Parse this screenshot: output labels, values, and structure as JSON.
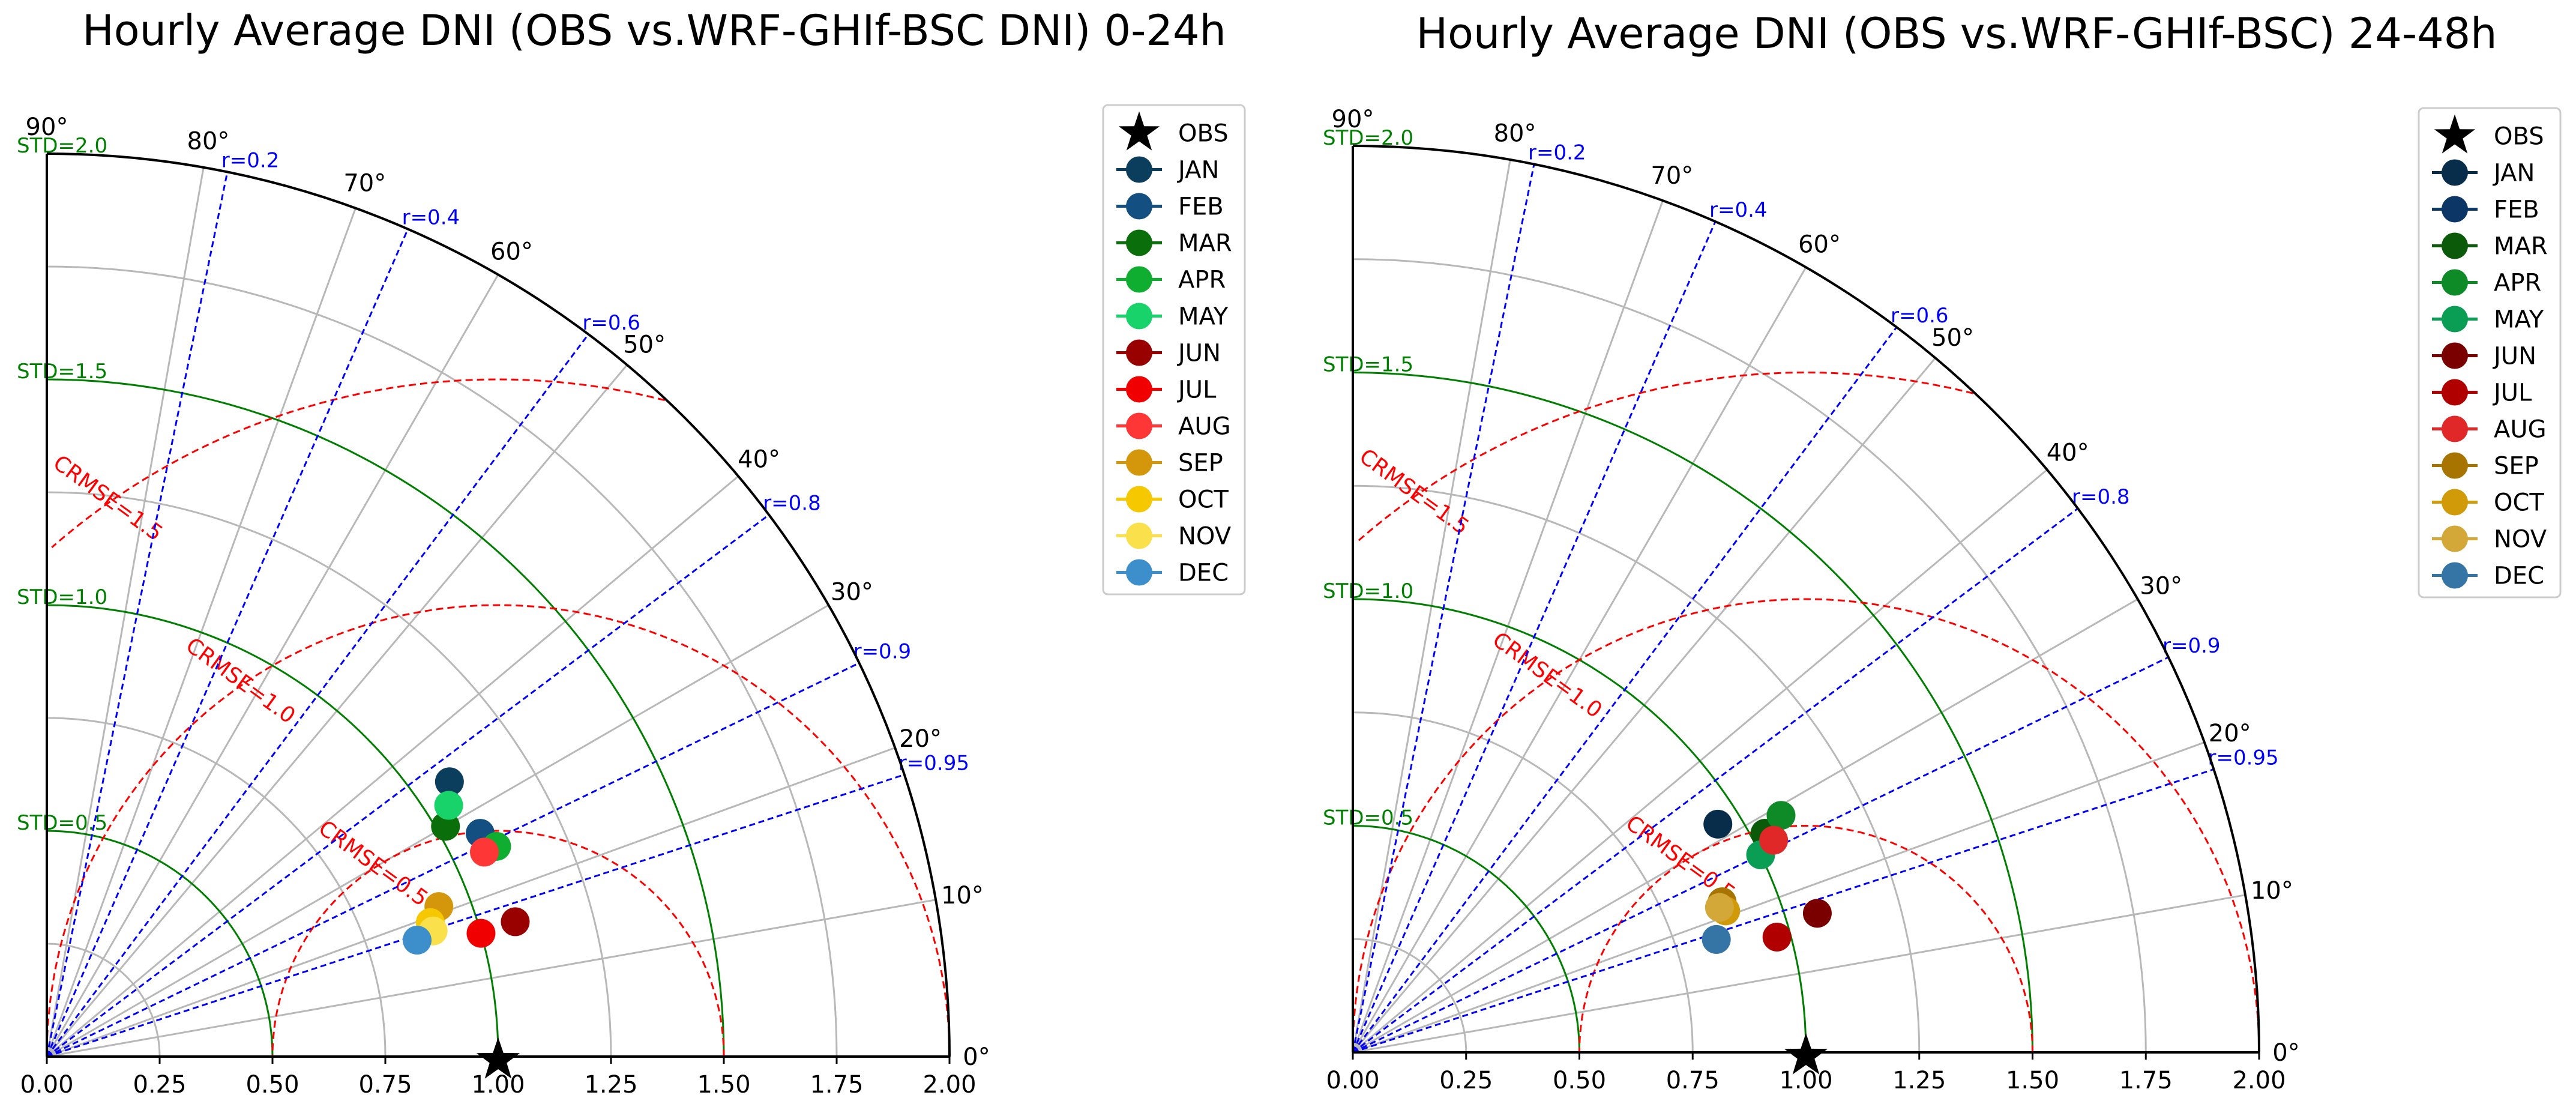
{
  "chart_data": [
    {
      "type": "taylor-diagram",
      "title": "Hourly Average DNI (OBS vs.WRF-GHIf-BSC DNI) 0-24h",
      "std_ticks": [
        "0.00",
        "0.25",
        "0.50",
        "0.75",
        "1.00",
        "1.25",
        "1.50",
        "1.75",
        "2.00"
      ],
      "angle_ticks": [
        "0°",
        "10°",
        "20°",
        "30°",
        "40°",
        "50°",
        "60°",
        "70°",
        "80°",
        "90°"
      ],
      "std_range": [
        0,
        2
      ],
      "std_arcs": [
        {
          "value": 0.5,
          "label": "STD=0.5"
        },
        {
          "value": 1.0,
          "label": "STD=1.0"
        },
        {
          "value": 1.5,
          "label": "STD=1.5"
        },
        {
          "value": 2.0,
          "label": "STD=2.0"
        }
      ],
      "correlation_lines": [
        {
          "r": 0.2,
          "label": "r=0.2"
        },
        {
          "r": 0.4,
          "label": "r=0.4"
        },
        {
          "r": 0.6,
          "label": "r=0.6"
        },
        {
          "r": 0.8,
          "label": "r=0.8"
        },
        {
          "r": 0.9,
          "label": "r=0.9"
        },
        {
          "r": 0.95,
          "label": "r=0.95"
        }
      ],
      "crmse_arcs": [
        {
          "value": 0.5,
          "label": "CRMSE=0.5"
        },
        {
          "value": 1.0,
          "label": "CRMSE=1.0"
        },
        {
          "value": 1.5,
          "label": "CRMSE=1.5"
        }
      ],
      "reference": {
        "name": "OBS",
        "std": 1.0,
        "r": 1.0
      },
      "points": [
        {
          "name": "JAN",
          "std": 1.08,
          "r": 0.826,
          "color": "#0b3d5c"
        },
        {
          "name": "FEB",
          "std": 1.08,
          "r": 0.889,
          "color": "#144f82"
        },
        {
          "name": "MAR",
          "std": 1.02,
          "r": 0.866,
          "color": "#0a6e0a"
        },
        {
          "name": "APR",
          "std": 1.1,
          "r": 0.906,
          "color": "#0fae30"
        },
        {
          "name": "MAY",
          "std": 1.05,
          "r": 0.848,
          "color": "#18d36a"
        },
        {
          "name": "JUN",
          "std": 1.08,
          "r": 0.961,
          "color": "#990000"
        },
        {
          "name": "JUL",
          "std": 1.0,
          "r": 0.962,
          "color": "#f00000"
        },
        {
          "name": "AUG",
          "std": 1.07,
          "r": 0.906,
          "color": "#ff3636"
        },
        {
          "name": "SEP",
          "std": 0.93,
          "r": 0.934,
          "color": "#d4960a"
        },
        {
          "name": "OCT",
          "std": 0.9,
          "r": 0.944,
          "color": "#f5c800"
        },
        {
          "name": "NOV",
          "std": 0.9,
          "r": 0.951,
          "color": "#fae04a"
        },
        {
          "name": "DEC",
          "std": 0.86,
          "r": 0.954,
          "color": "#3d8fcc"
        }
      ]
    },
    {
      "type": "taylor-diagram",
      "title": "Hourly Average DNI (OBS vs.WRF-GHIf-BSC) 24-48h",
      "std_ticks": [
        "0.00",
        "0.25",
        "0.50",
        "0.75",
        "1.00",
        "1.25",
        "1.50",
        "1.75",
        "2.00"
      ],
      "angle_ticks": [
        "0°",
        "10°",
        "20°",
        "30°",
        "40°",
        "50°",
        "60°",
        "70°",
        "80°",
        "90°"
      ],
      "std_range": [
        0,
        2
      ],
      "std_arcs": [
        {
          "value": 0.5,
          "label": "STD=0.5"
        },
        {
          "value": 1.0,
          "label": "STD=1.0"
        },
        {
          "value": 1.5,
          "label": "STD=1.5"
        },
        {
          "value": 2.0,
          "label": "STD=2.0"
        }
      ],
      "correlation_lines": [
        {
          "r": 0.2,
          "label": "r=0.2"
        },
        {
          "r": 0.4,
          "label": "r=0.4"
        },
        {
          "r": 0.6,
          "label": "r=0.6"
        },
        {
          "r": 0.8,
          "label": "r=0.8"
        },
        {
          "r": 0.9,
          "label": "r=0.9"
        },
        {
          "r": 0.95,
          "label": "r=0.95"
        }
      ],
      "crmse_arcs": [
        {
          "value": 0.5,
          "label": "CRMSE=0.5"
        },
        {
          "value": 1.0,
          "label": "CRMSE=1.0"
        },
        {
          "value": 1.5,
          "label": "CRMSE=1.5"
        }
      ],
      "reference": {
        "name": "OBS",
        "std": 1.0,
        "r": 1.0
      },
      "points": [
        {
          "name": "JAN",
          "std": 0.95,
          "r": 0.848,
          "color": "#082d4a"
        },
        {
          "name": "FEB",
          "std": 1.03,
          "r": 0.887,
          "color": "#0c3666"
        },
        {
          "name": "MAR",
          "std": 1.03,
          "r": 0.883,
          "color": "#0a5a0a"
        },
        {
          "name": "APR",
          "std": 1.08,
          "r": 0.875,
          "color": "#0e8a26"
        },
        {
          "name": "MAY",
          "std": 1.0,
          "r": 0.9,
          "color": "#0a9e55"
        },
        {
          "name": "JUN",
          "std": 1.07,
          "r": 0.958,
          "color": "#7a0000"
        },
        {
          "name": "JUL",
          "std": 0.97,
          "r": 0.965,
          "color": "#b00000"
        },
        {
          "name": "AUG",
          "std": 1.04,
          "r": 0.893,
          "color": "#e02828"
        },
        {
          "name": "SEP",
          "std": 0.88,
          "r": 0.926,
          "color": "#a87400"
        },
        {
          "name": "OCT",
          "std": 0.88,
          "r": 0.935,
          "color": "#d09a08"
        },
        {
          "name": "NOV",
          "std": 0.87,
          "r": 0.93,
          "color": "#d4a838"
        },
        {
          "name": "DEC",
          "std": 0.84,
          "r": 0.955,
          "color": "#3575a6"
        }
      ]
    }
  ]
}
